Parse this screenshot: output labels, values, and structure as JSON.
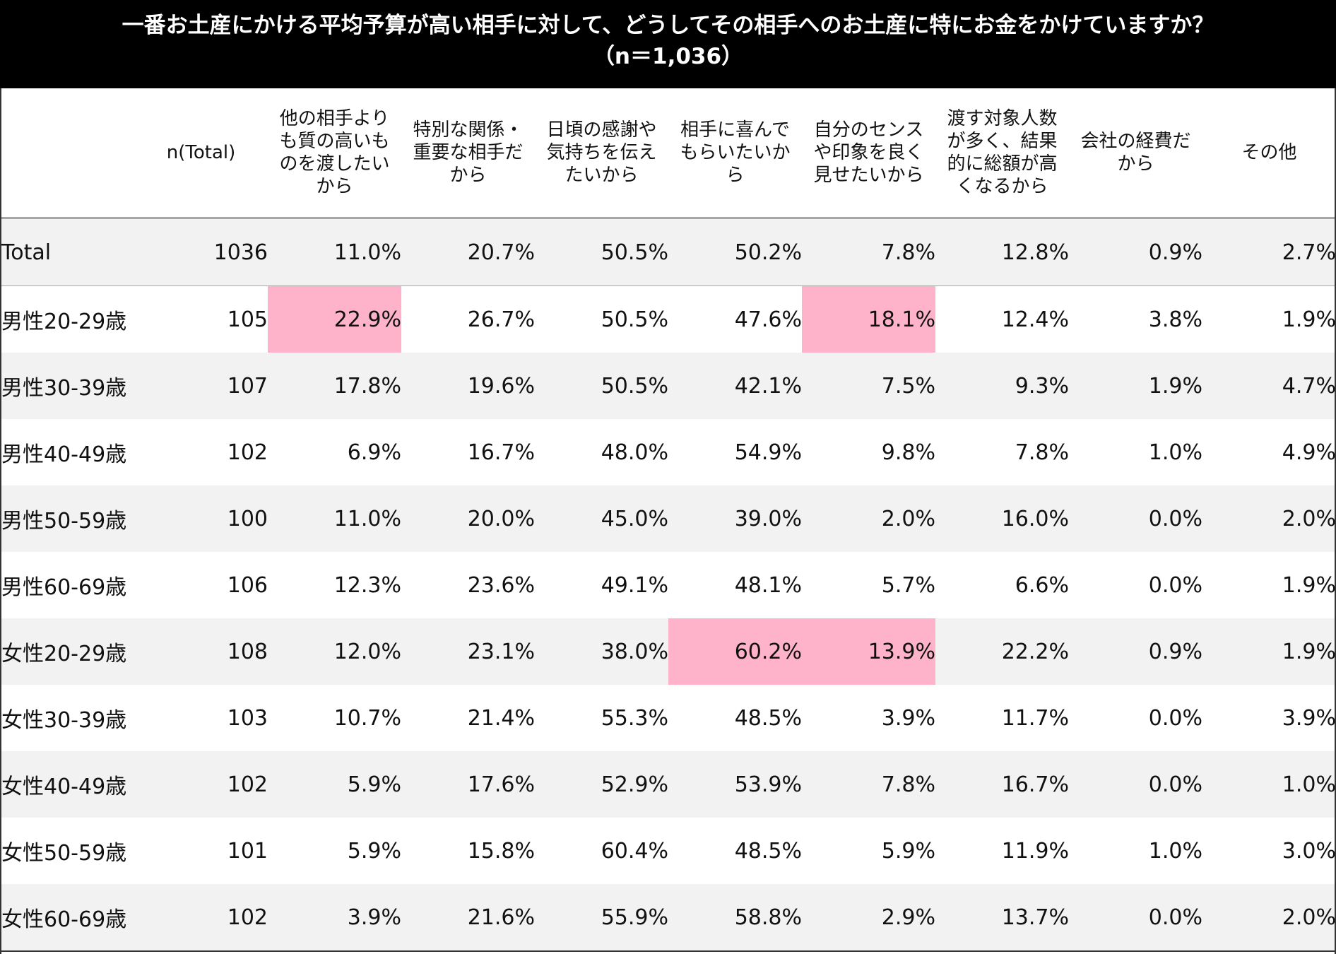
{
  "title": {
    "line1": "一番お土産にかける平均予算が高い相手に対して、どうしてその相手へのお土産に特にお金をかけていますか？",
    "line2": "（n＝1,036）"
  },
  "colors": {
    "title_bg": "#000000",
    "highlight": "#ffb3cb",
    "shade": "#f2f2f2"
  },
  "chart_data": {
    "type": "table",
    "title": "一番お土産にかける平均予算が高い相手に対して、どうしてその相手へのお土産に特にお金をかけていますか？（n＝1,036）",
    "columns": [
      "",
      "n(Total)",
      "他の相手よりも質の高いものを渡したいから",
      "特別な関係・重要な相手だから",
      "日頃の感謝や気持ちを伝えたいから",
      "相手に喜んでもらいたいから",
      "自分のセンスや印象を良く見せたいから",
      "渡す対象人数が多く、結果的に総額が高くなるから",
      "会社の経費だから",
      "その他"
    ],
    "rows": [
      {
        "label": "Total",
        "n": "1036",
        "values": [
          "11.0%",
          "20.7%",
          "50.5%",
          "50.2%",
          "7.8%",
          "12.8%",
          "0.9%",
          "2.7%"
        ],
        "highlight": []
      },
      {
        "label": "男性20-29歳",
        "n": "105",
        "values": [
          "22.9%",
          "26.7%",
          "50.5%",
          "47.6%",
          "18.1%",
          "12.4%",
          "3.8%",
          "1.9%"
        ],
        "highlight": [
          0,
          4
        ]
      },
      {
        "label": "男性30-39歳",
        "n": "107",
        "values": [
          "17.8%",
          "19.6%",
          "50.5%",
          "42.1%",
          "7.5%",
          "9.3%",
          "1.9%",
          "4.7%"
        ],
        "highlight": []
      },
      {
        "label": "男性40-49歳",
        "n": "102",
        "values": [
          "6.9%",
          "16.7%",
          "48.0%",
          "54.9%",
          "9.8%",
          "7.8%",
          "1.0%",
          "4.9%"
        ],
        "highlight": []
      },
      {
        "label": "男性50-59歳",
        "n": "100",
        "values": [
          "11.0%",
          "20.0%",
          "45.0%",
          "39.0%",
          "2.0%",
          "16.0%",
          "0.0%",
          "2.0%"
        ],
        "highlight": []
      },
      {
        "label": "男性60-69歳",
        "n": "106",
        "values": [
          "12.3%",
          "23.6%",
          "49.1%",
          "48.1%",
          "5.7%",
          "6.6%",
          "0.0%",
          "1.9%"
        ],
        "highlight": []
      },
      {
        "label": "女性20-29歳",
        "n": "108",
        "values": [
          "12.0%",
          "23.1%",
          "38.0%",
          "60.2%",
          "13.9%",
          "22.2%",
          "0.9%",
          "1.9%"
        ],
        "highlight": [
          3,
          4
        ]
      },
      {
        "label": "女性30-39歳",
        "n": "103",
        "values": [
          "10.7%",
          "21.4%",
          "55.3%",
          "48.5%",
          "3.9%",
          "11.7%",
          "0.0%",
          "3.9%"
        ],
        "highlight": []
      },
      {
        "label": "女性40-49歳",
        "n": "102",
        "values": [
          "5.9%",
          "17.6%",
          "52.9%",
          "53.9%",
          "7.8%",
          "16.7%",
          "0.0%",
          "1.0%"
        ],
        "highlight": []
      },
      {
        "label": "女性50-59歳",
        "n": "101",
        "values": [
          "5.9%",
          "15.8%",
          "60.4%",
          "48.5%",
          "5.9%",
          "11.9%",
          "1.0%",
          "3.0%"
        ],
        "highlight": []
      },
      {
        "label": "女性60-69歳",
        "n": "102",
        "values": [
          "3.9%",
          "21.6%",
          "55.9%",
          "58.8%",
          "2.9%",
          "13.7%",
          "0.0%",
          "2.0%"
        ],
        "highlight": []
      }
    ]
  }
}
